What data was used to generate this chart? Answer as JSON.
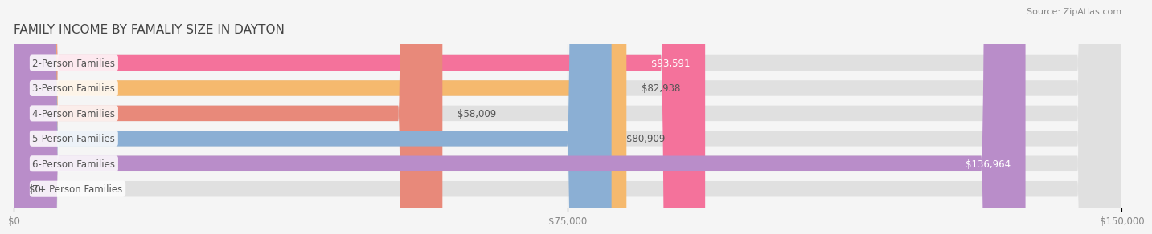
{
  "title": "FAMILY INCOME BY FAMALIY SIZE IN DAYTON",
  "source": "Source: ZipAtlas.com",
  "categories": [
    "2-Person Families",
    "3-Person Families",
    "4-Person Families",
    "5-Person Families",
    "6-Person Families",
    "7+ Person Families"
  ],
  "values": [
    93591,
    82938,
    58009,
    80909,
    136964,
    0
  ],
  "labels": [
    "$93,591",
    "$82,938",
    "$58,009",
    "$80,909",
    "$136,964",
    "$0"
  ],
  "bar_colors": [
    "#F4729B",
    "#F5B96E",
    "#E8897A",
    "#8BAFD4",
    "#B98DC9",
    "#7DCFCF"
  ],
  "background_color": "#f5f5f5",
  "bar_bg_color": "#e0e0e0",
  "xlim": [
    0,
    150000
  ],
  "xticks": [
    0,
    75000,
    150000
  ],
  "xtick_labels": [
    "$0",
    "$75,000",
    "$150,000"
  ],
  "title_fontsize": 11,
  "label_fontsize": 8.5,
  "tick_fontsize": 8.5,
  "source_fontsize": 8
}
